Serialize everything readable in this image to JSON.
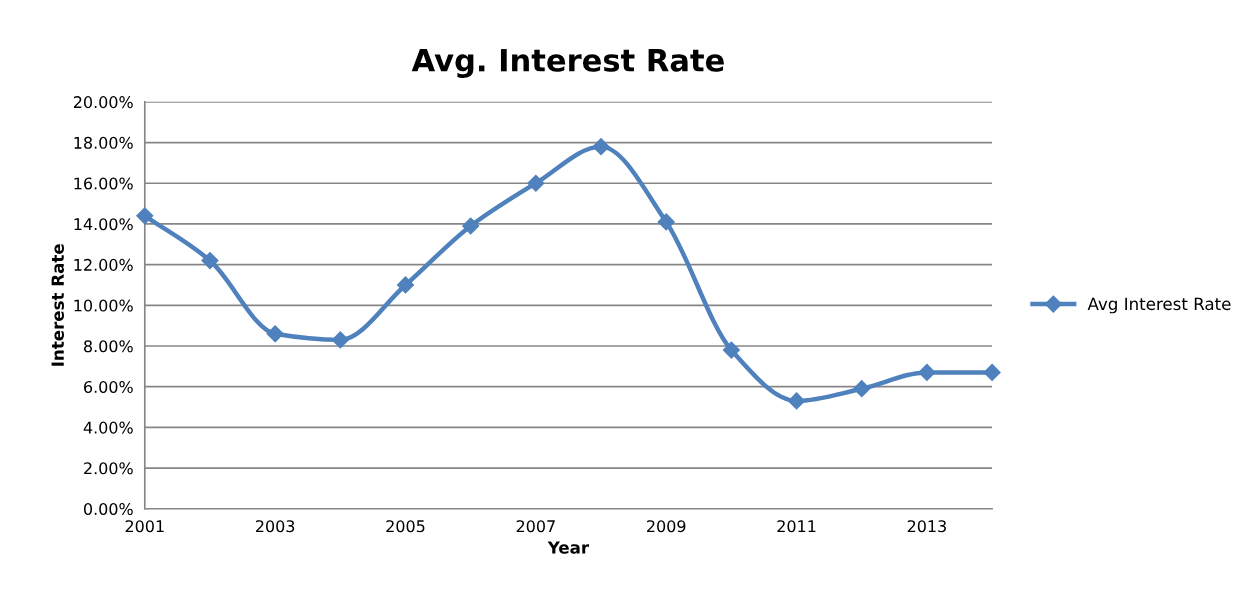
{
  "chart_data": {
    "type": "line",
    "title": "Avg. Interest Rate",
    "xlabel": "Year",
    "ylabel": "Interest Rate",
    "x": [
      2001,
      2002,
      2003,
      2004,
      2005,
      2006,
      2007,
      2008,
      2009,
      2010,
      2011,
      2012,
      2013,
      2014
    ],
    "series": [
      {
        "name": "Avg Interest Rate",
        "color": "#4f81bd",
        "values": [
          14.4,
          12.2,
          8.6,
          8.3,
          11.0,
          13.9,
          16.0,
          17.8,
          14.1,
          7.8,
          5.3,
          5.9,
          6.7,
          6.7
        ]
      }
    ],
    "xlim": [
      2001,
      2014
    ],
    "xticks": [
      2001,
      2003,
      2005,
      2007,
      2009,
      2011,
      2013
    ],
    "ylim": [
      0,
      20
    ],
    "yticks": [
      {
        "value": 0,
        "label": "0.00%"
      },
      {
        "value": 2,
        "label": "2.00%"
      },
      {
        "value": 4,
        "label": "4.00%"
      },
      {
        "value": 6,
        "label": "6.00%"
      },
      {
        "value": 8,
        "label": "8.00%"
      },
      {
        "value": 10,
        "label": "10.00%"
      },
      {
        "value": 12,
        "label": "12.00%"
      },
      {
        "value": 14,
        "label": "14.00%"
      },
      {
        "value": 16,
        "label": "16.00%"
      },
      {
        "value": 18,
        "label": "18.00%"
      },
      {
        "value": 20,
        "label": "20.00%"
      }
    ],
    "grid": "y",
    "legend": "right",
    "marker": "diamond",
    "line_style": "solid"
  }
}
